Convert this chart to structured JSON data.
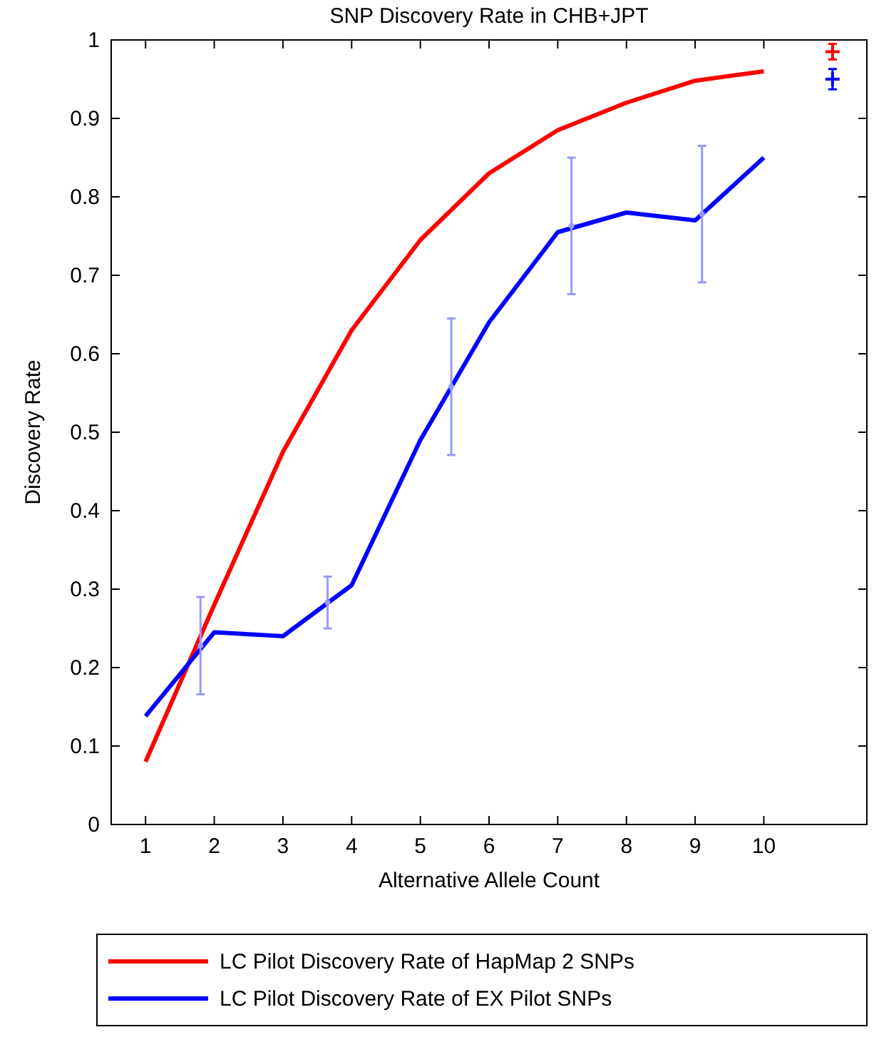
{
  "chart_data": {
    "type": "line",
    "title": "SNP Discovery Rate in CHB+JPT",
    "xlabel": "Alternative Allele Count",
    "ylabel": "Discovery Rate",
    "xlim": [
      0.5,
      11.5
    ],
    "xticks": [
      1,
      2,
      3,
      4,
      5,
      6,
      7,
      8,
      9,
      10
    ],
    "ylim": [
      0,
      1
    ],
    "yticks": [
      0,
      0.1,
      0.2,
      0.3,
      0.4,
      0.5,
      0.6,
      0.7,
      0.8,
      0.9,
      1
    ],
    "grid": false,
    "legend": "bottom",
    "marker": "none",
    "line_style": "solid",
    "series": [
      {
        "name": "LC Pilot Discovery Rate of HapMap 2 SNPs",
        "color": "#ff0000",
        "x": [
          1,
          2,
          3,
          4,
          5,
          6,
          7,
          8,
          9,
          10
        ],
        "values": [
          0.08,
          0.28,
          0.475,
          0.63,
          0.745,
          0.83,
          0.885,
          0.92,
          0.948,
          0.96
        ]
      },
      {
        "name": "LC Pilot Discovery Rate of EX Pilot SNPs",
        "color": "#0000ff",
        "x": [
          1,
          2,
          3,
          4,
          5,
          6,
          7,
          8,
          9,
          10
        ],
        "values": [
          0.138,
          0.245,
          0.24,
          0.305,
          0.49,
          0.64,
          0.755,
          0.78,
          0.77,
          0.85
        ]
      },
      {
        "type": "scatter",
        "marker": "circle",
        "color": "#9999ff",
        "x": [
          1.8,
          3.65,
          5.45,
          7.2,
          9.1
        ],
        "values": [
          0.228,
          0.283,
          0.558,
          0.763,
          0.778
        ],
        "errors": [
          0.062,
          0.033,
          0.087,
          0.087,
          0.087
        ]
      },
      {
        "type": "scatter",
        "marker": "cross",
        "color": "#ff0000",
        "x": [
          11
        ],
        "values": [
          0.985
        ],
        "errors": [
          0.01
        ]
      },
      {
        "type": "scatter",
        "marker": "cross",
        "color": "#0000ff",
        "x": [
          11
        ],
        "values": [
          0.95
        ],
        "errors": [
          0.013
        ]
      }
    ]
  }
}
